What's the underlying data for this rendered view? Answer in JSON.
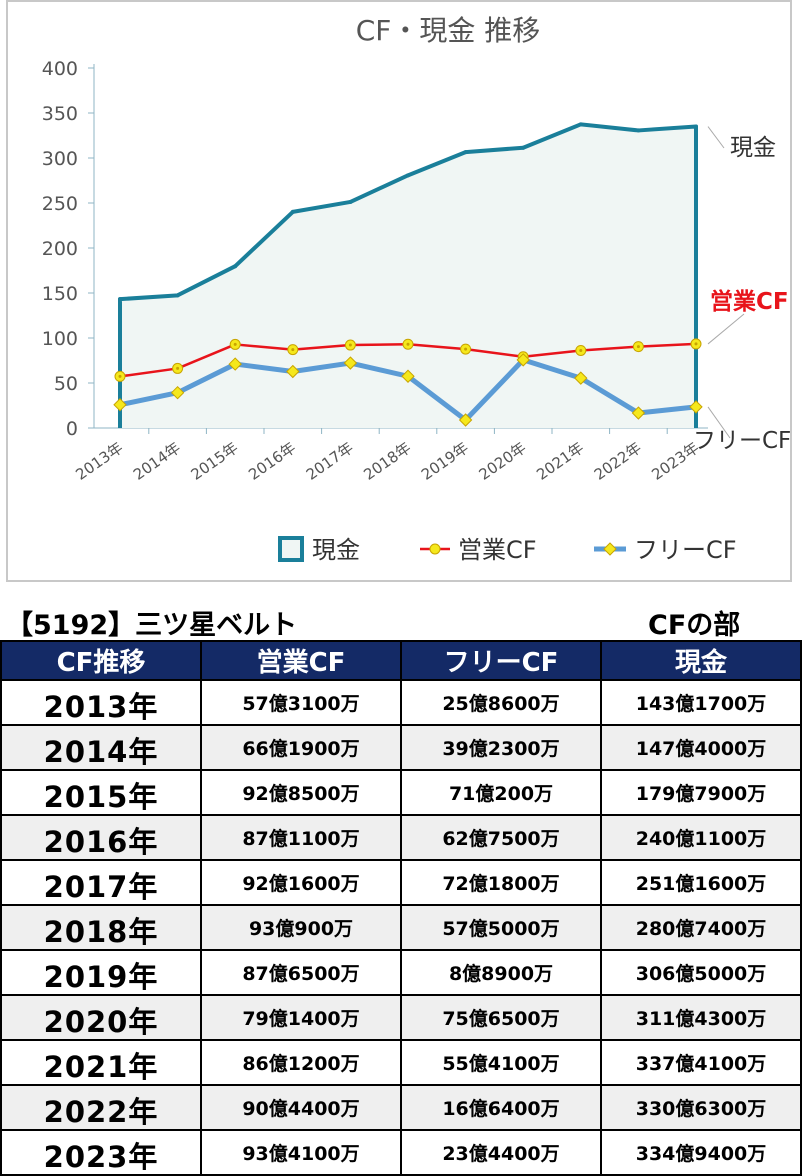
{
  "chart_data": {
    "type": "line",
    "title": "CF・現金 推移",
    "categories": [
      "2013年",
      "2014年",
      "2015年",
      "2016年",
      "2017年",
      "2018年",
      "2019年",
      "2020年",
      "2021年",
      "2022年",
      "2023年"
    ],
    "ylim": [
      0,
      400
    ],
    "yticks": [
      0,
      50,
      100,
      150,
      200,
      250,
      300,
      350,
      400
    ],
    "grid": false,
    "legend_position": "bottom",
    "series": [
      {
        "name": "現金",
        "kind": "area",
        "color": "#1a7f9a",
        "fill": "#f0f6f4",
        "values": [
          143.17,
          147.4,
          179.79,
          240.11,
          251.16,
          280.74,
          306.5,
          311.43,
          337.41,
          330.63,
          334.94
        ]
      },
      {
        "name": "営業CF",
        "kind": "line",
        "color": "#e8141b",
        "marker": "circle",
        "marker_color": "#f5e81c",
        "values": [
          57.31,
          66.19,
          92.85,
          87.11,
          92.16,
          93.09,
          87.65,
          79.14,
          86.12,
          90.44,
          93.41
        ]
      },
      {
        "name": "フリーCF",
        "kind": "line",
        "color": "#5b9bd5",
        "marker": "diamond",
        "marker_color": "#f5e81c",
        "values": [
          25.86,
          39.23,
          71.02,
          62.75,
          72.18,
          57.5,
          8.89,
          75.65,
          55.41,
          16.64,
          23.44
        ]
      }
    ],
    "annotations": [
      {
        "text": "現金",
        "series": "現金",
        "color": "#333333"
      },
      {
        "text": "営業CF",
        "series": "営業CF",
        "color": "#e8141b"
      },
      {
        "text": "フリーCF",
        "series": "フリーCF",
        "color": "#333333"
      }
    ]
  },
  "company_title": "【5192】三ツ星ベルト",
  "section_title": "CFの部",
  "table": {
    "headers": [
      "CF推移",
      "営業CF",
      "フリーCF",
      "現金"
    ],
    "rows": [
      {
        "year": "2013年",
        "op": "57億3100万",
        "free": "25億8600万",
        "cash": "143億1700万"
      },
      {
        "year": "2014年",
        "op": "66億1900万",
        "free": "39億2300万",
        "cash": "147億4000万"
      },
      {
        "year": "2015年",
        "op": "92億8500万",
        "free": "71億200万",
        "cash": "179億7900万"
      },
      {
        "year": "2016年",
        "op": "87億1100万",
        "free": "62億7500万",
        "cash": "240億1100万"
      },
      {
        "year": "2017年",
        "op": "92億1600万",
        "free": "72億1800万",
        "cash": "251億1600万"
      },
      {
        "year": "2018年",
        "op": "93億900万",
        "free": "57億5000万",
        "cash": "280億7400万"
      },
      {
        "year": "2019年",
        "op": "87億6500万",
        "free": "8億8900万",
        "cash": "306億5000万"
      },
      {
        "year": "2020年",
        "op": "79億1400万",
        "free": "75億6500万",
        "cash": "311億4300万"
      },
      {
        "year": "2021年",
        "op": "86億1200万",
        "free": "55億4100万",
        "cash": "337億4100万"
      },
      {
        "year": "2022年",
        "op": "90億4400万",
        "free": "16億6400万",
        "cash": "330億6300万"
      },
      {
        "year": "2023年",
        "op": "93億4100万",
        "free": "23億4400万",
        "cash": "334億9400万"
      }
    ]
  }
}
